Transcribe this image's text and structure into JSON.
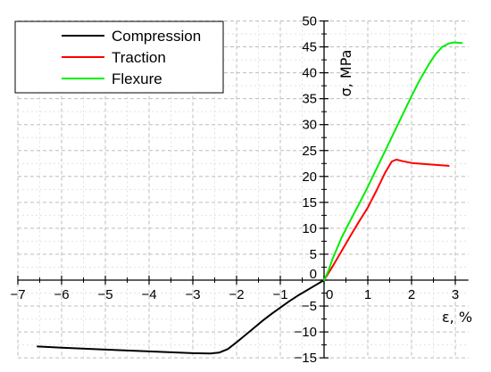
{
  "chart_data": {
    "type": "line",
    "title": "",
    "xlabel": "ε, %",
    "ylabel": "σ, MPa",
    "xlim": [
      -7,
      3.3
    ],
    "ylim": [
      -15,
      50
    ],
    "x_ticks": [
      -7,
      -6,
      -5,
      -4,
      -3,
      -2,
      -1,
      0,
      1,
      2,
      3
    ],
    "y_ticks": [
      -15,
      -10,
      -5,
      0,
      5,
      10,
      15,
      20,
      25,
      30,
      35,
      40,
      45,
      50
    ],
    "grid": true,
    "legend_position": "top-left",
    "series": [
      {
        "name": "Compression",
        "color": "#000000",
        "points": [
          [
            -6.55,
            -12.8
          ],
          [
            -6.0,
            -13.05
          ],
          [
            -5.0,
            -13.4
          ],
          [
            -4.0,
            -13.75
          ],
          [
            -3.0,
            -14.1
          ],
          [
            -2.6,
            -14.15
          ],
          [
            -2.4,
            -14.0
          ],
          [
            -2.2,
            -13.3
          ],
          [
            -2.0,
            -12.0
          ],
          [
            -1.8,
            -10.6
          ],
          [
            -1.6,
            -9.2
          ],
          [
            -1.4,
            -7.8
          ],
          [
            -1.2,
            -6.5
          ],
          [
            -1.0,
            -5.3
          ],
          [
            -0.8,
            -4.1
          ],
          [
            -0.6,
            -3.0
          ],
          [
            -0.4,
            -2.0
          ],
          [
            -0.2,
            -1.0
          ],
          [
            0,
            0
          ]
        ]
      },
      {
        "name": "Traction",
        "color": "#ff0000",
        "points": [
          [
            0,
            0
          ],
          [
            0.2,
            2.7
          ],
          [
            0.4,
            5.6
          ],
          [
            0.6,
            8.5
          ],
          [
            0.8,
            11.3
          ],
          [
            1.0,
            14.0
          ],
          [
            1.2,
            17.3
          ],
          [
            1.4,
            20.8
          ],
          [
            1.55,
            22.9
          ],
          [
            1.65,
            23.25
          ],
          [
            1.8,
            22.95
          ],
          [
            2.0,
            22.6
          ],
          [
            2.3,
            22.4
          ],
          [
            2.6,
            22.2
          ],
          [
            2.85,
            22.05
          ]
        ]
      },
      {
        "name": "Flexure",
        "color": "#00ee00",
        "points": [
          [
            0,
            0
          ],
          [
            0.1,
            1.8
          ],
          [
            0.2,
            4.2
          ],
          [
            0.4,
            8.2
          ],
          [
            0.6,
            11.5
          ],
          [
            0.8,
            14.7
          ],
          [
            1.0,
            18.0
          ],
          [
            1.2,
            21.5
          ],
          [
            1.4,
            25.0
          ],
          [
            1.6,
            28.5
          ],
          [
            1.8,
            32.0
          ],
          [
            2.0,
            35.5
          ],
          [
            2.2,
            38.8
          ],
          [
            2.4,
            41.7
          ],
          [
            2.55,
            43.6
          ],
          [
            2.7,
            45.0
          ],
          [
            2.85,
            45.65
          ],
          [
            2.95,
            45.85
          ],
          [
            3.05,
            45.8
          ],
          [
            3.15,
            45.75
          ]
        ]
      }
    ]
  }
}
